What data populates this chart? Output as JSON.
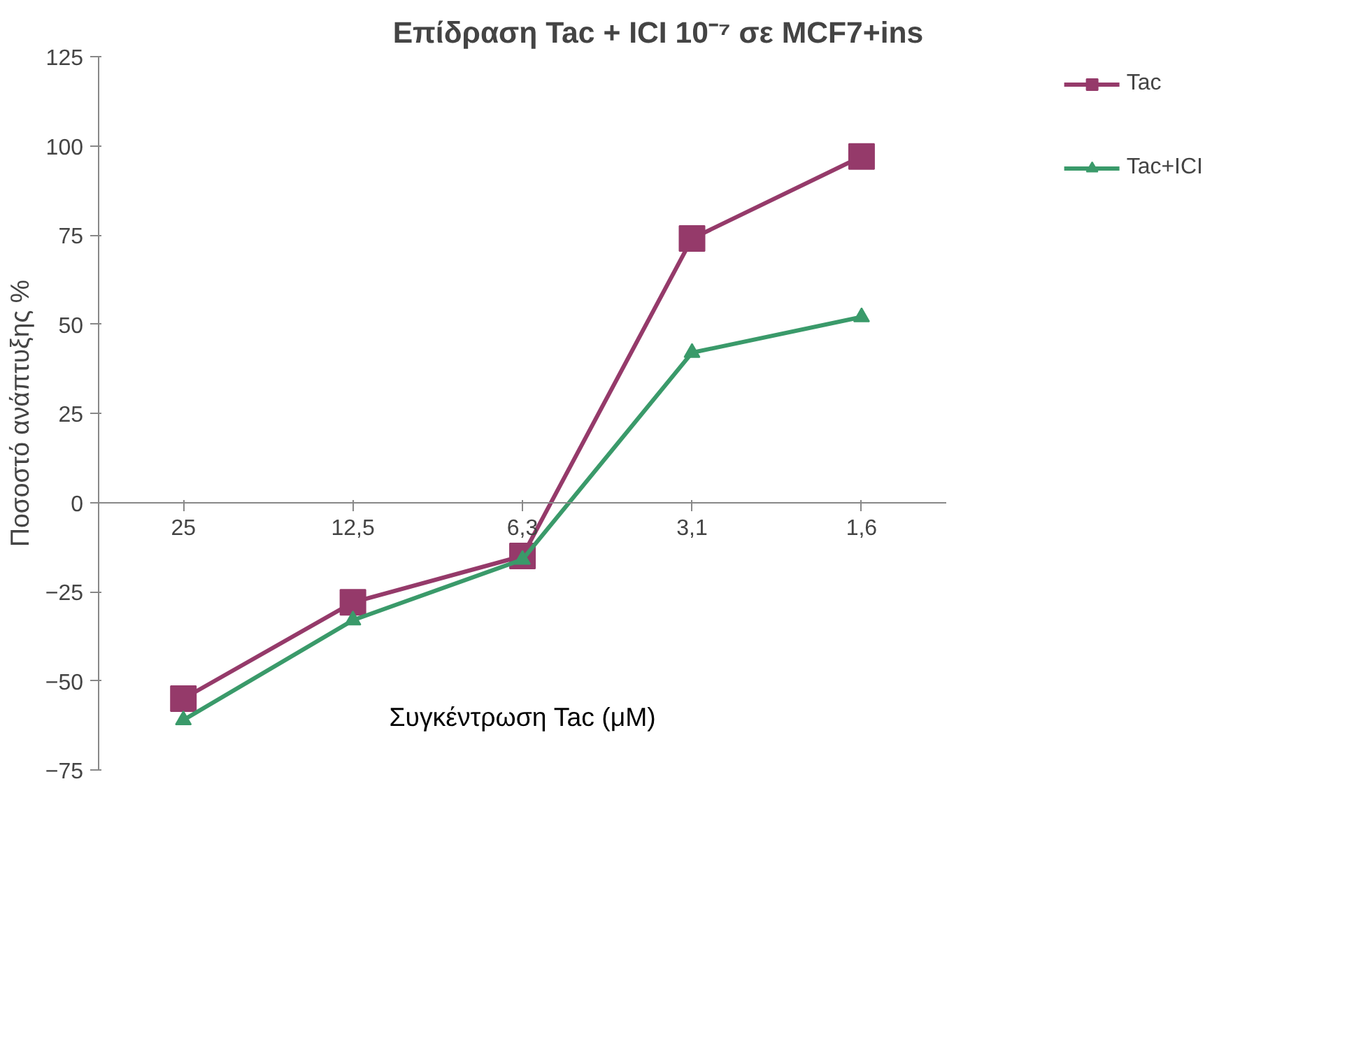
{
  "chart_data": {
    "type": "line",
    "title": "Επίδραση Tac + ICI 10⁻⁷ σε MCF7+ins",
    "xlabel": "Συγκέντρωση Tac (μM)",
    "ylabel": "Ποσοστό ανάπτυξης %",
    "categories": [
      "25",
      "12,5",
      "6,3",
      "3,1",
      "1,6"
    ],
    "series": [
      {
        "name": "Tac",
        "color": "#953a6a",
        "marker": "square",
        "values": [
          -55,
          -28,
          -15,
          74,
          97
        ]
      },
      {
        "name": "Tac+ICI",
        "color": "#3a9a6a",
        "marker": "triangle",
        "values": [
          -61,
          -33,
          -16,
          42,
          52
        ]
      }
    ],
    "ylim": [
      -75,
      125
    ],
    "yticks": [
      -75,
      -50,
      -25,
      0,
      25,
      50,
      75,
      100,
      125
    ],
    "grid": false,
    "legend": "right"
  }
}
